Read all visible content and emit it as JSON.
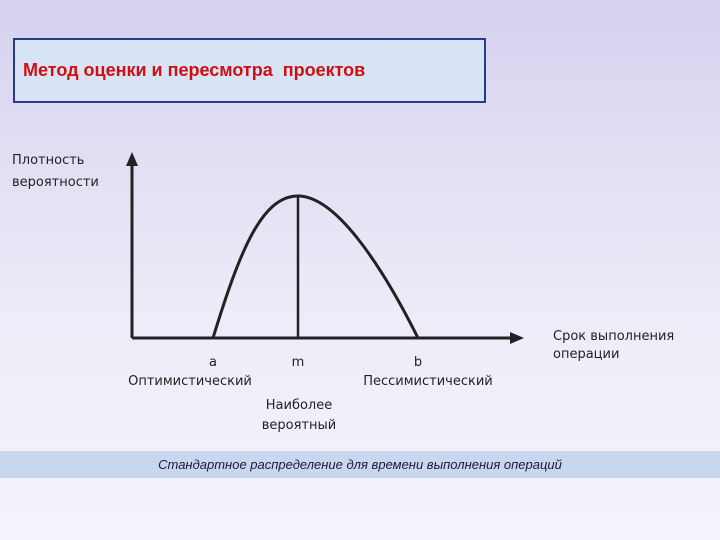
{
  "title": "Метод оценки и пересмотра  проектов",
  "diagram": {
    "y_axis_label": [
      "Плотность",
      "вероятности"
    ],
    "x_axis_label": [
      "Срок выполнения",
      "операции"
    ],
    "points": [
      {
        "letter": "a",
        "label": [
          "Оптимистический"
        ]
      },
      {
        "letter": "m",
        "label": [
          "Наиболее",
          "вероятный"
        ]
      },
      {
        "letter": "b",
        "label": [
          "Пессимистический"
        ]
      }
    ]
  },
  "caption": "Стандартное распределение для времени выполнения операций"
}
